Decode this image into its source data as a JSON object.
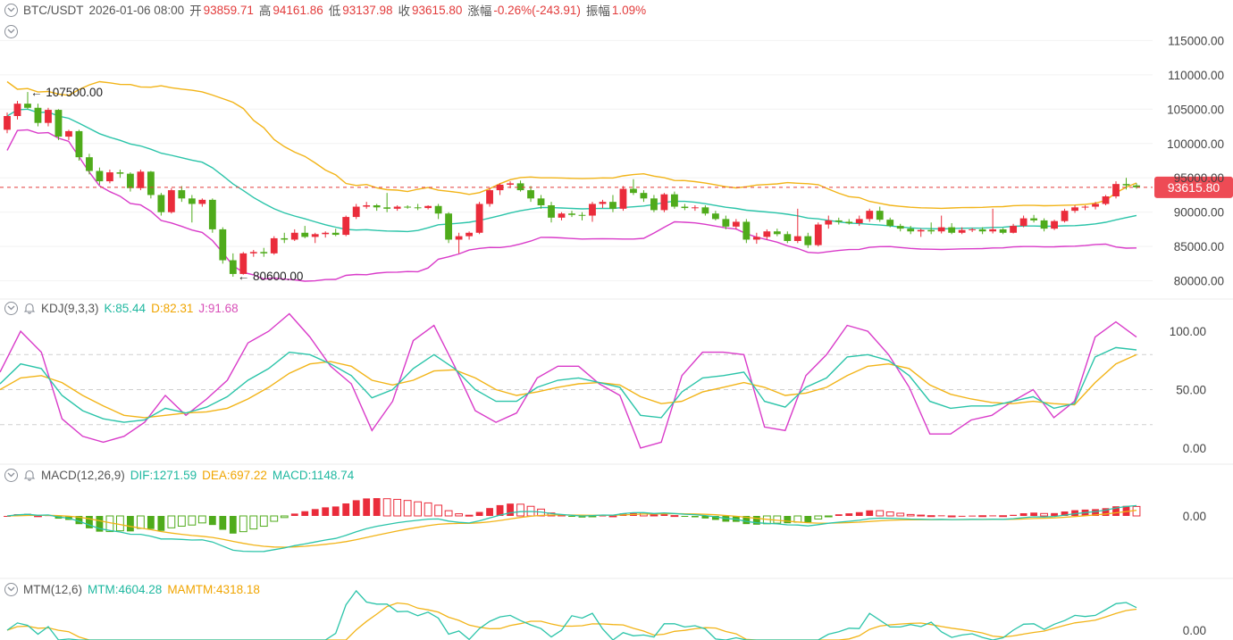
{
  "header": {
    "symbol": "BTC/USDT",
    "datetime": "2026-01-06 08:00",
    "open_label": "开",
    "open": "93859.71",
    "high_label": "高",
    "high": "94161.86",
    "low_label": "低",
    "low": "93137.98",
    "close_label": "收",
    "close": "93615.80",
    "change_label": "涨幅",
    "change": "-0.26%(-243.91)",
    "amp_label": "振幅",
    "amp": "1.09%"
  },
  "kdj": {
    "name": "KDJ(9,3,3)",
    "k": "K:85.44",
    "d": "D:82.31",
    "j": "J:91.68"
  },
  "macd": {
    "name": "MACD(12,26,9)",
    "dif": "DIF:1271.59",
    "dea": "DEA:697.22",
    "macd": "MACD:1148.74"
  },
  "mtm": {
    "name": "MTM(12,6)",
    "mtm": "MTM:4604.28",
    "mamtm": "MAMTM:4318.18"
  },
  "price_axis": [
    "115000.00",
    "110000.00",
    "105000.00",
    "100000.00",
    "95000.00",
    "90000.00",
    "85000.00",
    "80000.00"
  ],
  "kdj_axis": [
    "100.00",
    "50.00",
    "0.00"
  ],
  "macd_axis": [
    "0.00"
  ],
  "mtm_axis": [
    "0.00"
  ],
  "current_price": "93615.80",
  "annotations": {
    "high": "107500.00",
    "low": "80600.00"
  },
  "colors": {
    "up": "#ea2c3b",
    "down": "#4fab1b",
    "boll_mid": "#2bc4a9",
    "boll_up": "#f2b418",
    "boll_low": "#d93bc9",
    "k": "#2bc4a9",
    "d": "#f2b418",
    "j": "#d93bc9"
  },
  "icons": [
    "collapse-circle-icon",
    "bell-icon"
  ],
  "chart_data": {
    "type": "candlestick",
    "ohlc_daily_approx": [
      [
        102000,
        104500,
        101500,
        104000
      ],
      [
        104000,
        106200,
        103500,
        105800
      ],
      [
        105800,
        107500,
        105000,
        105200
      ],
      [
        105200,
        105800,
        102500,
        103000
      ],
      [
        103000,
        105200,
        102500,
        104900
      ],
      [
        104900,
        105000,
        100500,
        101000
      ],
      [
        101000,
        102000,
        100500,
        101800
      ],
      [
        101800,
        102000,
        97500,
        98000
      ],
      [
        98000,
        98500,
        95500,
        96000
      ],
      [
        96000,
        96500,
        94000,
        94500
      ],
      [
        94500,
        96200,
        94200,
        95800
      ],
      [
        95800,
        96200,
        95000,
        95600
      ],
      [
        95600,
        95800,
        93000,
        93500
      ],
      [
        93500,
        96200,
        93200,
        95900
      ],
      [
        95900,
        96000,
        92000,
        92500
      ],
      [
        92500,
        92800,
        89500,
        90000
      ],
      [
        90000,
        93500,
        89800,
        93200
      ],
      [
        93200,
        93800,
        91500,
        92000
      ],
      [
        92000,
        92500,
        88500,
        91200
      ],
      [
        91200,
        92000,
        90800,
        91800
      ],
      [
        91800,
        92000,
        87000,
        87500
      ],
      [
        87500,
        87800,
        82500,
        83000
      ],
      [
        83000,
        84000,
        80600,
        81000
      ],
      [
        81000,
        84200,
        80900,
        84000
      ],
      [
        84000,
        84500,
        83500,
        84200
      ],
      [
        84200,
        84800,
        83500,
        84000
      ],
      [
        84000,
        86500,
        83800,
        86200
      ],
      [
        86200,
        87000,
        85500,
        86000
      ],
      [
        86000,
        87500,
        85800,
        87000
      ],
      [
        87000,
        88000,
        86200,
        86400
      ],
      [
        86400,
        87000,
        85500,
        86800
      ],
      [
        86800,
        87200,
        86300,
        87000
      ],
      [
        87000,
        87600,
        86500,
        86700
      ],
      [
        86700,
        89500,
        86500,
        89300
      ],
      [
        89300,
        91200,
        89000,
        90800
      ],
      [
        90800,
        91500,
        90500,
        91000
      ],
      [
        91000,
        91200,
        90200,
        90700
      ],
      [
        90700,
        92800,
        90000,
        90500
      ],
      [
        90500,
        91000,
        90200,
        90800
      ],
      [
        90800,
        91000,
        90500,
        90700
      ],
      [
        90700,
        91200,
        90300,
        90600
      ],
      [
        90600,
        91000,
        90400,
        90900
      ],
      [
        90900,
        91200,
        89000,
        89800
      ],
      [
        89800,
        90000,
        85500,
        86000
      ],
      [
        86000,
        87000,
        84000,
        86500
      ],
      [
        86500,
        87200,
        86000,
        87000
      ],
      [
        87000,
        91500,
        86800,
        91200
      ],
      [
        91200,
        93500,
        90800,
        93200
      ],
      [
        93200,
        94200,
        92500,
        94000
      ],
      [
        94000,
        94500,
        93500,
        94200
      ],
      [
        94200,
        94600,
        93000,
        93200
      ],
      [
        93200,
        93800,
        91500,
        92000
      ],
      [
        92000,
        92500,
        90500,
        91000
      ],
      [
        91000,
        91500,
        88500,
        89200
      ],
      [
        89200,
        90000,
        88800,
        89800
      ],
      [
        89800,
        90200,
        89300,
        89600
      ],
      [
        89600,
        90000,
        88800,
        89500
      ],
      [
        89500,
        91500,
        88600,
        91200
      ],
      [
        91200,
        91800,
        90600,
        91500
      ],
      [
        91500,
        92500,
        90000,
        90500
      ],
      [
        90500,
        93800,
        90200,
        93400
      ],
      [
        93400,
        94800,
        92500,
        92800
      ],
      [
        92800,
        93200,
        91500,
        92000
      ],
      [
        92000,
        92500,
        90000,
        90300
      ],
      [
        90300,
        92800,
        90000,
        92600
      ],
      [
        92600,
        93000,
        90500,
        90800
      ],
      [
        90800,
        91200,
        90300,
        90600
      ],
      [
        90600,
        91000,
        90200,
        90700
      ],
      [
        90700,
        91000,
        89500,
        89800
      ],
      [
        89800,
        90200,
        88800,
        89000
      ],
      [
        89000,
        89500,
        87500,
        87900
      ],
      [
        87900,
        89000,
        87500,
        88600
      ],
      [
        88600,
        89000,
        85500,
        86000
      ],
      [
        86000,
        87000,
        85400,
        86400
      ],
      [
        86400,
        87500,
        86000,
        87200
      ],
      [
        87200,
        87600,
        86500,
        86800
      ],
      [
        86800,
        87200,
        85500,
        85800
      ],
      [
        85800,
        90500,
        85500,
        86500
      ],
      [
        86500,
        87000,
        84800,
        85200
      ],
      [
        85200,
        88500,
        85000,
        88200
      ],
      [
        88200,
        89500,
        87600,
        88800
      ],
      [
        88800,
        89200,
        88200,
        88600
      ],
      [
        88600,
        89000,
        88200,
        88400
      ],
      [
        88400,
        89500,
        88000,
        89000
      ],
      [
        89000,
        90500,
        88600,
        90200
      ],
      [
        90200,
        90800,
        88600,
        88900
      ],
      [
        88900,
        89200,
        87800,
        88000
      ],
      [
        88000,
        88300,
        87200,
        87600
      ],
      [
        87600,
        88000,
        86800,
        87200
      ],
      [
        87200,
        87600,
        86400,
        87400
      ],
      [
        87400,
        88500,
        86800,
        87200
      ],
      [
        87200,
        89500,
        86900,
        87800
      ],
      [
        87800,
        88400,
        86800,
        87000
      ],
      [
        87000,
        87800,
        86800,
        87400
      ],
      [
        87400,
        87700,
        87100,
        87500
      ],
      [
        87500,
        87800,
        86800,
        87200
      ],
      [
        87200,
        90500,
        86900,
        87500
      ],
      [
        87500,
        87700,
        86800,
        87000
      ],
      [
        87000,
        88300,
        86900,
        88000
      ],
      [
        88000,
        89500,
        87800,
        89100
      ],
      [
        89100,
        89600,
        88500,
        88800
      ],
      [
        88800,
        89100,
        87200,
        87600
      ],
      [
        87600,
        88900,
        87400,
        88700
      ],
      [
        88700,
        90500,
        88500,
        90200
      ],
      [
        90200,
        91000,
        89900,
        90700
      ],
      [
        90700,
        91000,
        90300,
        90800
      ],
      [
        90800,
        91500,
        90400,
        91200
      ],
      [
        91200,
        92500,
        91000,
        92300
      ],
      [
        92300,
        94500,
        92000,
        94100
      ],
      [
        94100,
        95000,
        93300,
        93900
      ],
      [
        93900,
        94200,
        93400,
        93616
      ]
    ],
    "y_axis_range": [
      78000,
      117000
    ],
    "overlays": [
      "BOLL upper",
      "BOLL middle",
      "BOLL lower"
    ],
    "kdj_range": [
      -10,
      110
    ],
    "kdj_values": {
      "k": [
        55,
        72,
        68,
        45,
        32,
        25,
        22,
        24,
        34,
        30,
        35,
        44,
        58,
        68,
        82,
        80,
        72,
        62,
        43,
        50,
        68,
        80,
        68,
        50,
        40,
        40,
        52,
        58,
        60,
        56,
        52,
        28,
        26,
        48,
        60,
        62,
        65,
        40,
        35,
        52,
        60,
        78,
        80,
        75,
        62,
        40,
        34,
        36,
        36,
        40,
        44,
        34,
        38,
        78,
        86,
        84
      ],
      "d": [
        50,
        60,
        62,
        56,
        45,
        36,
        28,
        26,
        28,
        30,
        31,
        34,
        42,
        52,
        64,
        72,
        74,
        70,
        58,
        54,
        58,
        66,
        67,
        60,
        50,
        45,
        48,
        52,
        55,
        56,
        54,
        44,
        38,
        40,
        48,
        52,
        56,
        52,
        45,
        47,
        52,
        62,
        70,
        72,
        68,
        54,
        46,
        42,
        39,
        38,
        40,
        38,
        37,
        56,
        72,
        80
      ],
      "j": [
        65,
        100,
        82,
        25,
        10,
        5,
        10,
        22,
        45,
        28,
        42,
        58,
        90,
        100,
        115,
        95,
        70,
        55,
        15,
        40,
        92,
        105,
        70,
        32,
        22,
        30,
        60,
        70,
        70,
        55,
        45,
        0,
        5,
        62,
        82,
        82,
        80,
        18,
        15,
        62,
        80,
        105,
        100,
        80,
        52,
        12,
        12,
        24,
        28,
        40,
        50,
        26,
        40,
        95,
        108,
        95
      ]
    },
    "macd_values": {
      "dif_trend": "declining then rising toward zero",
      "last_dif": 1271.59,
      "last_dea": 697.22,
      "last_macd": 1148.74
    },
    "mtm_values": {
      "last_mtm": 4604.28,
      "last_mamtm": 4318.18
    }
  }
}
